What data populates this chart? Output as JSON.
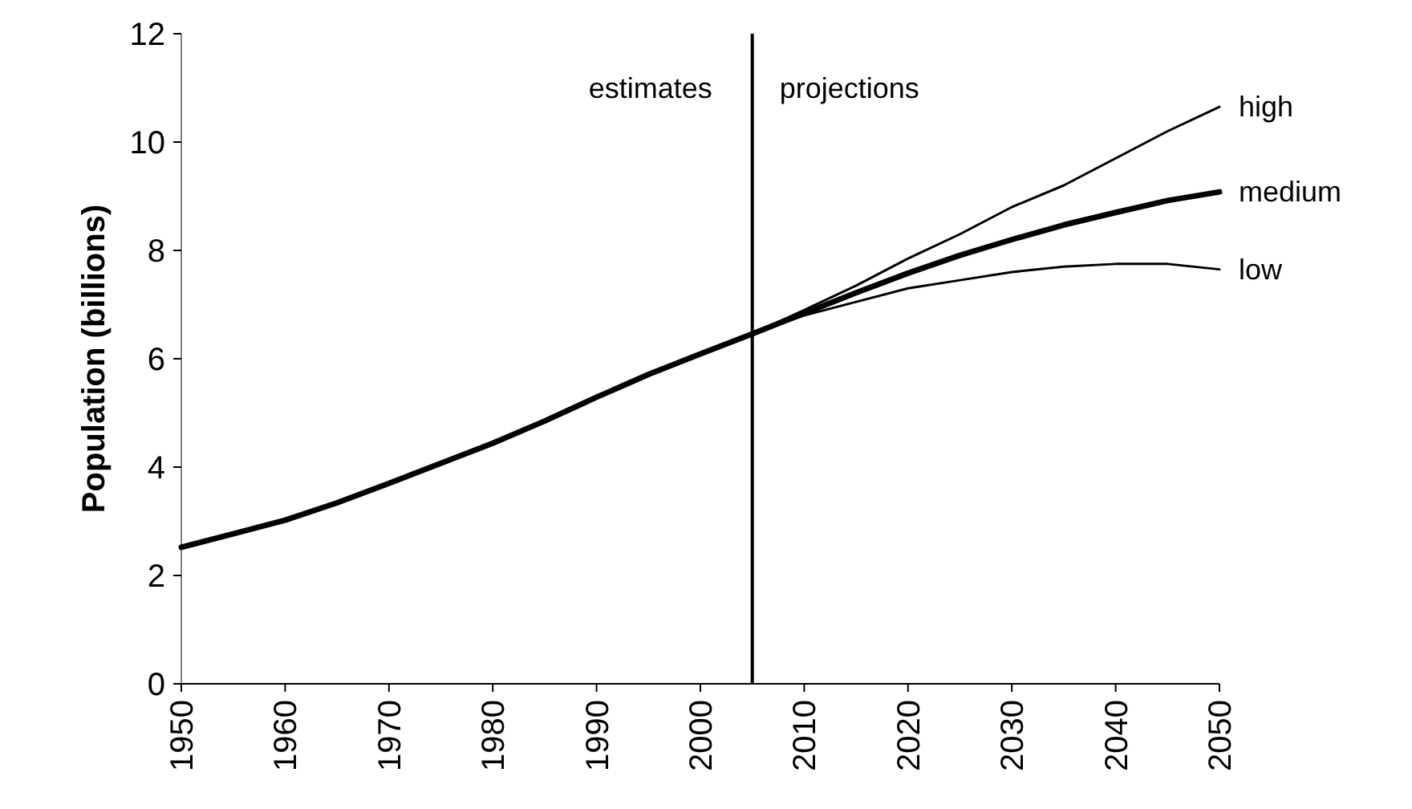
{
  "chart_data": {
    "type": "line",
    "ylabel": "Population (billions)",
    "xlim": [
      1950,
      2050
    ],
    "xticks": [
      1950,
      1960,
      1970,
      1980,
      1990,
      2000,
      2010,
      2020,
      2030,
      2040,
      2050
    ],
    "ylim": [
      0,
      12
    ],
    "yticks": [
      0,
      2,
      4,
      6,
      8,
      10,
      12
    ],
    "grid": false,
    "marker": "none",
    "line_style": "solid",
    "ref_lines": [
      {
        "axis": "x",
        "value": 2005,
        "color": "#000000"
      }
    ],
    "annotations": [
      "estimates",
      "projections"
    ],
    "series": [
      {
        "name": "high",
        "color": "#000000",
        "x": [
          2005,
          2010,
          2015,
          2020,
          2025,
          2030,
          2035,
          2040,
          2045,
          2050
        ],
        "values": [
          6.46,
          6.9,
          7.35,
          7.85,
          8.3,
          8.8,
          9.2,
          9.7,
          10.2,
          10.65
        ]
      },
      {
        "name": "medium",
        "color": "#000000",
        "x": [
          1950,
          1955,
          1960,
          1965,
          1970,
          1975,
          1980,
          1985,
          1990,
          1995,
          2000,
          2005,
          2010,
          2015,
          2020,
          2025,
          2030,
          2035,
          2040,
          2045,
          2050
        ],
        "values": [
          2.52,
          2.77,
          3.02,
          3.34,
          3.7,
          4.07,
          4.44,
          4.85,
          5.29,
          5.71,
          6.09,
          6.46,
          6.84,
          7.22,
          7.58,
          7.91,
          8.2,
          8.47,
          8.7,
          8.92,
          9.08
        ]
      },
      {
        "name": "low",
        "color": "#000000",
        "x": [
          2005,
          2010,
          2015,
          2020,
          2025,
          2030,
          2035,
          2040,
          2045,
          2050
        ],
        "values": [
          6.46,
          6.8,
          7.05,
          7.3,
          7.45,
          7.6,
          7.7,
          7.75,
          7.75,
          7.65
        ]
      }
    ]
  }
}
